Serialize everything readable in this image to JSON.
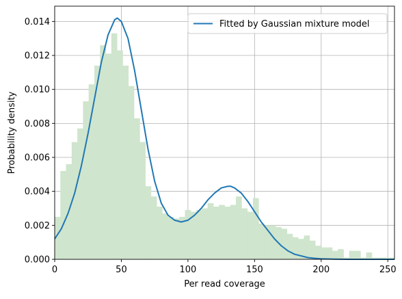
{
  "chart_data": {
    "type": "area",
    "xlabel": "Per read coverage",
    "ylabel": "Probability density",
    "xlim": [
      0,
      255
    ],
    "ylim": [
      0,
      0.0149
    ],
    "grid": true,
    "legend_placement": "top-right",
    "x_ticks": [
      0,
      50,
      100,
      150,
      200,
      250
    ],
    "x_tick_labels": [
      "0",
      "50",
      "100",
      "150",
      "200",
      "250"
    ],
    "y_ticks": [
      0,
      0.002,
      0.004,
      0.006,
      0.008,
      0.01,
      0.012,
      0.014
    ],
    "y_tick_labels": [
      "0.000",
      "0.002",
      "0.004",
      "0.006",
      "0.008",
      "0.010",
      "0.012",
      "0.014"
    ],
    "histogram": {
      "color": "#cfe5cd",
      "bin_start": 0,
      "bin_width": 4.25,
      "values": [
        0.0025,
        0.0052,
        0.0056,
        0.0069,
        0.0077,
        0.0093,
        0.0103,
        0.0114,
        0.0126,
        0.0121,
        0.0133,
        0.0123,
        0.0114,
        0.0102,
        0.0083,
        0.0069,
        0.0043,
        0.0037,
        0.0031,
        0.0027,
        0.0025,
        0.0024,
        0.0025,
        0.0029,
        0.0028,
        0.0029,
        0.003,
        0.0033,
        0.0031,
        0.0032,
        0.0031,
        0.0032,
        0.0037,
        0.003,
        0.0028,
        0.0036,
        0.0021,
        0.002,
        0.002,
        0.0019,
        0.0018,
        0.0015,
        0.0013,
        0.0012,
        0.0014,
        0.0011,
        0.0008,
        0.0007,
        0.0007,
        0.0005,
        0.0006,
        0.0001,
        0.0005,
        0.0005,
        0.0001,
        0.0004,
        0.0001,
        0.0001,
        0.0001,
        0.0001
      ]
    },
    "series": [
      {
        "name": "Fitted by Gaussian mixture model",
        "color": "#1f77b4",
        "x": [
          0,
          5,
          10,
          15,
          20,
          25,
          30,
          35,
          40,
          45,
          47,
          50,
          55,
          60,
          65,
          70,
          75,
          80,
          85,
          90,
          95,
          100,
          105,
          110,
          115,
          120,
          125,
          130,
          132,
          135,
          140,
          145,
          150,
          155,
          160,
          165,
          170,
          175,
          180,
          185,
          190,
          195,
          200,
          210,
          220,
          230,
          240,
          255
        ],
        "y": [
          0.0012,
          0.0018,
          0.0027,
          0.0039,
          0.0055,
          0.0074,
          0.0095,
          0.0116,
          0.0132,
          0.0141,
          0.0142,
          0.014,
          0.013,
          0.0111,
          0.0088,
          0.0065,
          0.0046,
          0.0033,
          0.0026,
          0.0023,
          0.0022,
          0.0023,
          0.0026,
          0.003,
          0.0035,
          0.0039,
          0.0042,
          0.0043,
          0.0043,
          0.0042,
          0.0039,
          0.0034,
          0.0028,
          0.0022,
          0.0017,
          0.0012,
          0.0008,
          0.0005,
          0.0003,
          0.0002,
          0.0001,
          6e-05,
          3e-05,
          1e-05,
          0.0,
          0.0,
          0.0,
          0.0
        ]
      }
    ]
  }
}
